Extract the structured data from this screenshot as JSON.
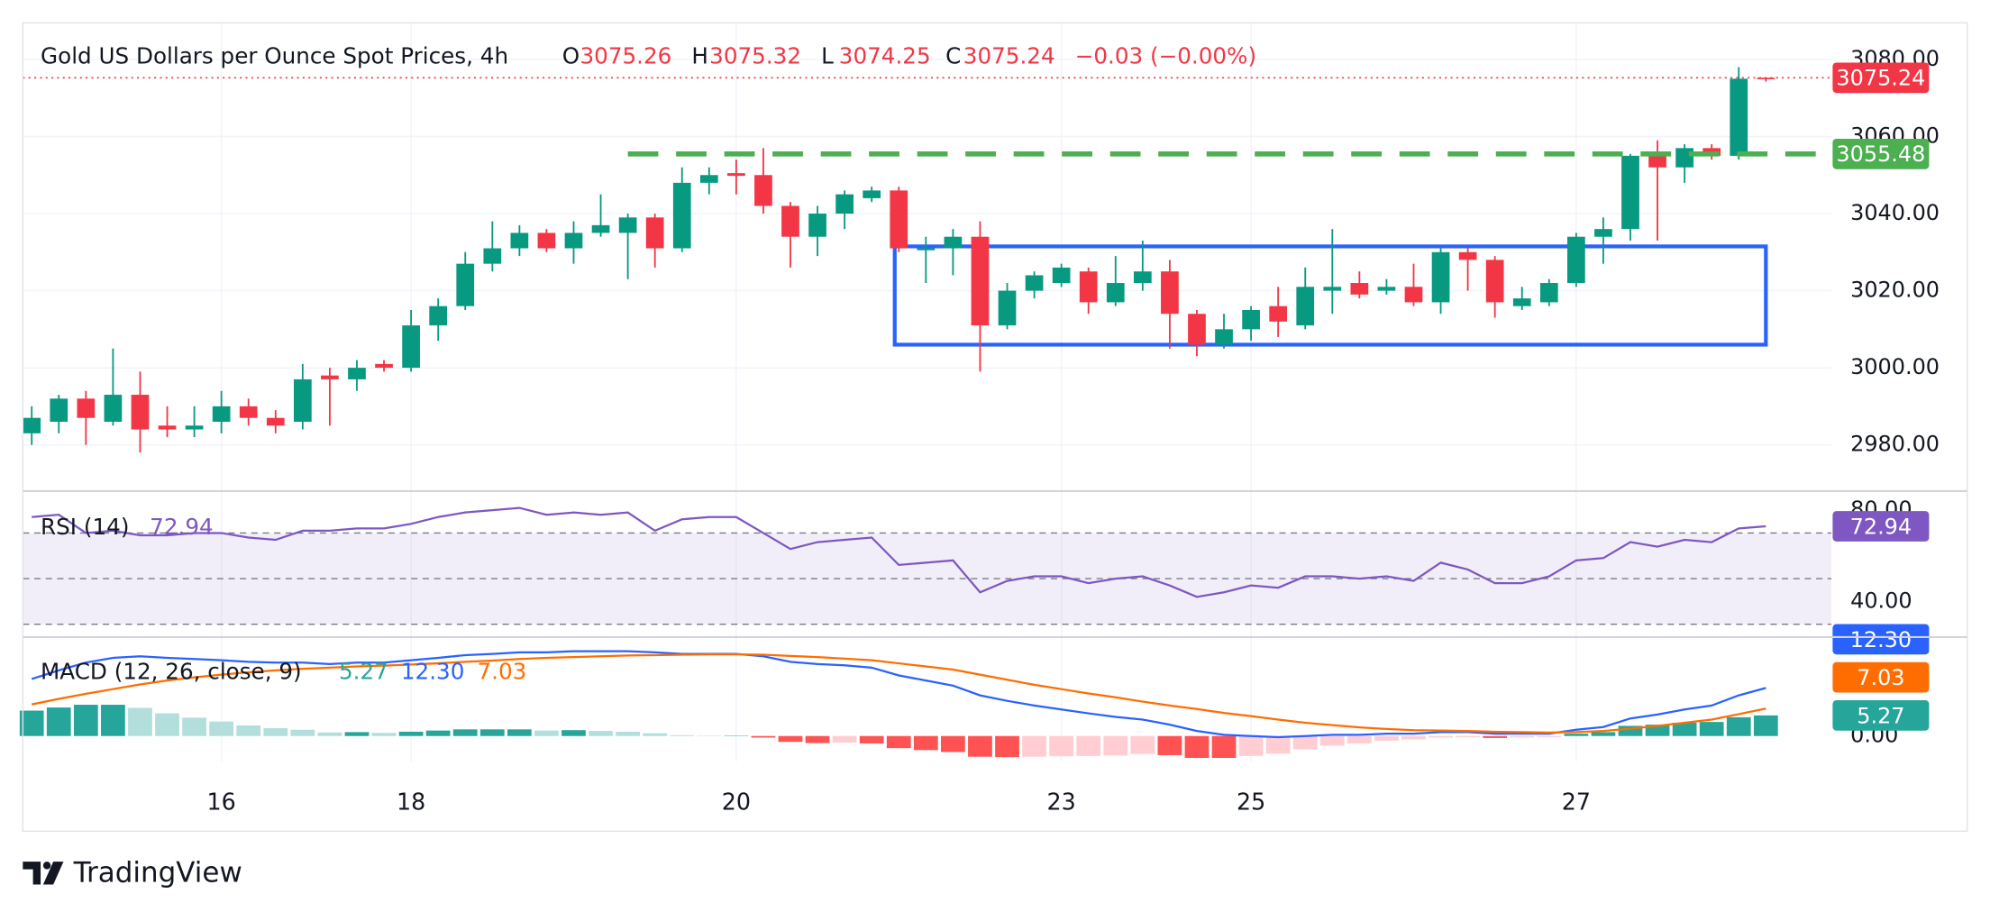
{
  "chart_data": [
    {
      "type": "candlestick",
      "title": "Gold US Dollars per Ounce Spot Prices, 4h",
      "ohlc_prefixes": [
        "O",
        "H",
        "L",
        "C"
      ],
      "change_label": "−0.03 (−0.00%)",
      "categories": [
        null,
        null,
        null,
        null,
        null,
        null,
        null,
        "16",
        null,
        null,
        null,
        null,
        null,
        null,
        "18",
        null,
        null,
        null,
        null,
        null,
        null,
        null,
        null,
        null,
        null,
        null,
        "20",
        null,
        null,
        null,
        null,
        null,
        null,
        null,
        null,
        null,
        null,
        null,
        "23",
        null,
        null,
        null,
        null,
        null,
        null,
        "25",
        null,
        null,
        null,
        null,
        null,
        null,
        null,
        null,
        null,
        null,
        null,
        "27",
        null,
        null,
        null,
        null,
        null,
        null,
        null
      ],
      "open": [
        2983,
        2986,
        2992,
        2986,
        2993,
        2985,
        2984,
        2986,
        2990,
        2987,
        2986,
        2998,
        2997,
        3001,
        3000,
        3011,
        3016,
        3027,
        3031,
        3035,
        3031,
        3035,
        3035,
        3039,
        3031,
        3048,
        3050.5,
        3050,
        3042,
        3034,
        3040,
        3044,
        3046,
        3030.5,
        3031,
        3034,
        3011,
        3020,
        3022,
        3025,
        3017,
        3022,
        3025,
        3014,
        3006,
        3010,
        3016,
        3011,
        3020,
        3022,
        3020,
        3021,
        3017,
        3030,
        3028,
        3016,
        3017,
        3022,
        3034,
        3036,
        3055,
        3052,
        3057,
        3055,
        3075.26
      ],
      "high": [
        2990,
        2993,
        2994,
        3005,
        2999,
        2990,
        2990,
        2994,
        2992,
        2989,
        3001,
        3000,
        3002,
        3002,
        3015,
        3018,
        3030,
        3038,
        3037,
        3036,
        3038,
        3045,
        3040,
        3040,
        3052,
        3052,
        3054,
        3057,
        3043,
        3042,
        3046,
        3047,
        3047,
        3034,
        3036,
        3038,
        3022,
        3025,
        3027,
        3026,
        3029,
        3033,
        3028,
        3015,
        3014,
        3016,
        3021,
        3026,
        3036,
        3025,
        3023,
        3027,
        3031,
        3031,
        3029,
        3021,
        3023,
        3035,
        3039,
        3055.5,
        3059,
        3058,
        3058,
        3078,
        3075.32
      ],
      "low": [
        2980,
        2983,
        2980,
        2985,
        2978,
        2982,
        2982,
        2983,
        2985,
        2983,
        2984,
        2985,
        2994,
        2999,
        2999,
        3007,
        3015,
        3025,
        3029,
        3030,
        3027,
        3034,
        3023,
        3026,
        3030,
        3045,
        3045,
        3040,
        3026,
        3029,
        3036,
        3043,
        3030,
        3022,
        3024,
        2999,
        3010,
        3018,
        3021,
        3014,
        3016,
        3020,
        3005,
        3003,
        3005,
        3007,
        3008,
        3010,
        3014,
        3018,
        3019,
        3016,
        3014,
        3020,
        3013,
        3015,
        3016,
        3021,
        3027,
        3033,
        3033,
        3048,
        3054,
        3054,
        3074.25
      ],
      "close": [
        2987,
        2992,
        2987,
        2993,
        2984,
        2984,
        2985,
        2990,
        2987,
        2985,
        2997,
        2997,
        3000,
        3000,
        3011,
        3016,
        3027,
        3031,
        3035,
        3031,
        3035,
        3037,
        3039,
        3031,
        3048,
        3050,
        3049.8,
        3042,
        3034,
        3040,
        3045,
        3046,
        3031,
        3031,
        3034,
        3011,
        3020,
        3024,
        3026,
        3017,
        3022,
        3025,
        3014,
        3006,
        3010,
        3015,
        3012,
        3021,
        3021,
        3019,
        3021,
        3017,
        3030,
        3028,
        3017,
        3018,
        3022,
        3034,
        3036,
        3055,
        3052,
        3057,
        3055,
        3075,
        3075.24
      ],
      "colors": {
        "up": "#089981",
        "down": "#f23645"
      },
      "ylim": [
        2968,
        3089.5
      ],
      "yticks": [
        {
          "value": 2980,
          "label": "2980.00"
        },
        {
          "value": 3000,
          "label": "3000.00"
        },
        {
          "value": 3020,
          "label": "3020.00"
        },
        {
          "value": 3040,
          "label": "3040.00"
        },
        {
          "value": 3060,
          "label": "3060.00"
        },
        {
          "value": 3080,
          "label": "3080.00"
        }
      ],
      "level_line": {
        "value": 3055.48,
        "color": "#4caf50"
      },
      "range_box": {
        "top": 3031.5,
        "bottom": 3006,
        "color": "#2962ff"
      },
      "grid": true
    },
    {
      "type": "line",
      "title": "RSI (14)",
      "values": [
        77,
        78,
        70,
        71,
        69,
        69,
        70,
        70,
        68,
        67,
        71,
        71,
        72,
        72,
        74,
        77,
        79,
        80,
        81,
        78,
        79,
        78,
        79,
        71,
        76,
        77,
        77,
        70,
        63,
        66,
        67,
        68,
        56,
        57,
        58,
        44,
        49,
        51,
        51,
        48,
        50,
        51,
        47,
        42,
        44,
        47,
        46,
        51,
        51,
        50,
        51,
        49,
        57,
        54,
        48,
        48,
        51,
        58,
        59,
        66,
        64,
        67,
        66,
        72,
        72.94
      ],
      "color": "#7e57c2",
      "ylim": [
        24.4,
        87.8
      ],
      "yticks": [
        {
          "value": 40,
          "label": "40.00"
        },
        {
          "value": 80,
          "label": "80.00"
        }
      ],
      "levels": [
        30,
        50,
        70
      ]
    },
    {
      "type": "macd",
      "title": "MACD (12, 26, close, 9)",
      "series": [
        {
          "color": "#2962ff",
          "values": [
            14.6,
            16.8,
            18.8,
            20,
            20.4,
            20,
            19.7,
            19.4,
            19,
            18.8,
            18.8,
            18.4,
            18.8,
            18.8,
            19.4,
            20,
            20.7,
            21,
            21.4,
            21.4,
            21.7,
            21.7,
            21.7,
            21.4,
            21,
            21,
            21,
            20.4,
            19,
            18.4,
            18.1,
            17.5,
            15.5,
            14.2,
            12.9,
            10.4,
            9,
            7.8,
            6.8,
            5.8,
            4.9,
            4.2,
            2.9,
            1.3,
            0.3,
            0,
            -0.3,
            0,
            0.3,
            0.3,
            0.6,
            0.6,
            1,
            1,
            0.6,
            0.6,
            0.6,
            1.6,
            2.3,
            4.5,
            5.5,
            6.8,
            7.8,
            10.4,
            12.3
          ],
          "value_labels": [
            null,
            null,
            null,
            null,
            null,
            null,
            null,
            null,
            null,
            null,
            null,
            null,
            null,
            null,
            null,
            null,
            null,
            null,
            null,
            null,
            null,
            null,
            null,
            null,
            null,
            null,
            null,
            null,
            null,
            null,
            null,
            null,
            null,
            null,
            null,
            null,
            null,
            null,
            null,
            null,
            null,
            null,
            null,
            null,
            null,
            null,
            null,
            null,
            null,
            null,
            null,
            null,
            null,
            null,
            null,
            null,
            null,
            null,
            null,
            null,
            null,
            null,
            null,
            null,
            "12.30"
          ]
        },
        {
          "color": "#ff6d00",
          "values": [
            8.1,
            9.5,
            10.8,
            12,
            13.2,
            14.2,
            15,
            15.7,
            16.3,
            16.8,
            17.2,
            17.5,
            17.8,
            18,
            18.3,
            18.6,
            19,
            19.3,
            19.7,
            20,
            20.2,
            20.4,
            20.6,
            20.7,
            20.8,
            20.9,
            20.9,
            20.8,
            20.5,
            20.2,
            19.8,
            19.4,
            18.6,
            17.8,
            17,
            15.7,
            14.4,
            13.1,
            12,
            10.9,
            9.9,
            8.8,
            7.8,
            6.9,
            5.9,
            5.1,
            4.2,
            3.4,
            2.8,
            2.2,
            1.8,
            1.5,
            1.4,
            1.3,
            1.1,
            1,
            0.9,
            1,
            1.3,
            1.9,
            2.6,
            3.4,
            4.2,
            5.6,
            7.03
          ]
        }
      ],
      "histogram": {
        "values": [
          6.5,
          7.3,
          8,
          8,
          7.2,
          5.8,
          4.7,
          3.7,
          2.7,
          2,
          1.6,
          0.9,
          1,
          0.8,
          1.1,
          1.4,
          1.7,
          1.7,
          1.7,
          1.4,
          1.5,
          1.3,
          1.1,
          0.7,
          0.2,
          0.1,
          0.1,
          -0.4,
          -1.5,
          -1.8,
          -1.7,
          -1.9,
          -3.1,
          -3.6,
          -4.1,
          -5.3,
          -5.4,
          -5.3,
          -5.2,
          -5.1,
          -5,
          -4.6,
          -4.9,
          -5.6,
          -5.6,
          -5.1,
          -4.5,
          -3.4,
          -2.5,
          -1.9,
          -1.2,
          -0.9,
          -0.4,
          -0.3,
          -0.5,
          -0.4,
          -0.3,
          0.6,
          1,
          2.6,
          2.9,
          3.4,
          3.6,
          4.8,
          5.27
        ],
        "colors": {
          "up_grow": "#26a69a",
          "up_fall": "#b2dfdb",
          "down_grow": "#ff5252",
          "down_fall": "#ffcdd2"
        }
      },
      "ylim": [
        -6.5,
        25
      ],
      "yticks": [
        {
          "value": 0,
          "label": "0.00"
        }
      ]
    }
  ],
  "branding": "TradingView"
}
